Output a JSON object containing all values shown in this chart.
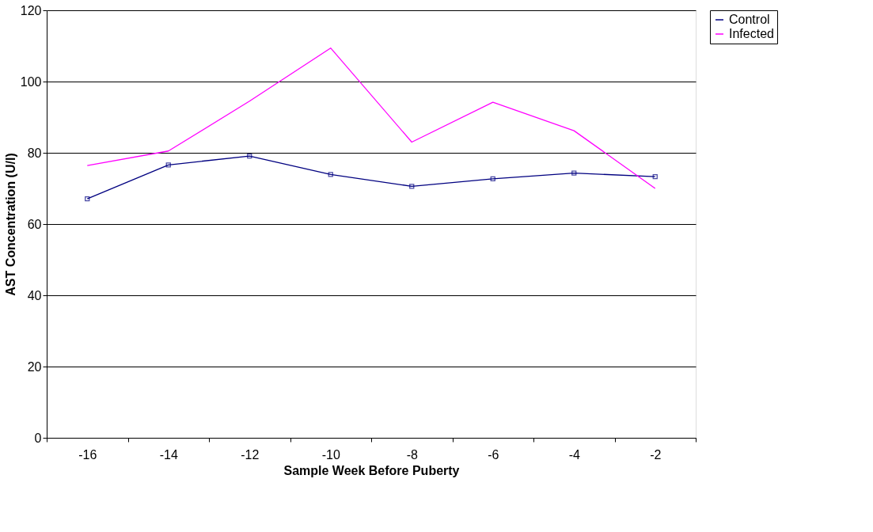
{
  "chart_data": {
    "type": "line",
    "xlabel": "Sample Week Before Puberty",
    "ylabel": "AST Concentration (U/l)",
    "categories": [
      "-16",
      "-14",
      "-12",
      "-10",
      "-8",
      "-6",
      "-4",
      "-2"
    ],
    "series": [
      {
        "name": "Control",
        "color": "#000080",
        "marker": "square",
        "values": [
          67.1,
          76.6,
          79.1,
          73.9,
          70.6,
          72.7,
          74.3,
          73.3
        ]
      },
      {
        "name": "Infected",
        "color": "#ff00ff",
        "marker": "none",
        "values": [
          76.4,
          80.5,
          94.5,
          109.4,
          83.0,
          94.2,
          86.2,
          70.0
        ]
      }
    ],
    "ylim": [
      0,
      120
    ],
    "yticks": [
      0,
      20,
      40,
      60,
      80,
      100,
      120
    ],
    "grid": "y",
    "legend": "right",
    "line_style": "solid"
  }
}
